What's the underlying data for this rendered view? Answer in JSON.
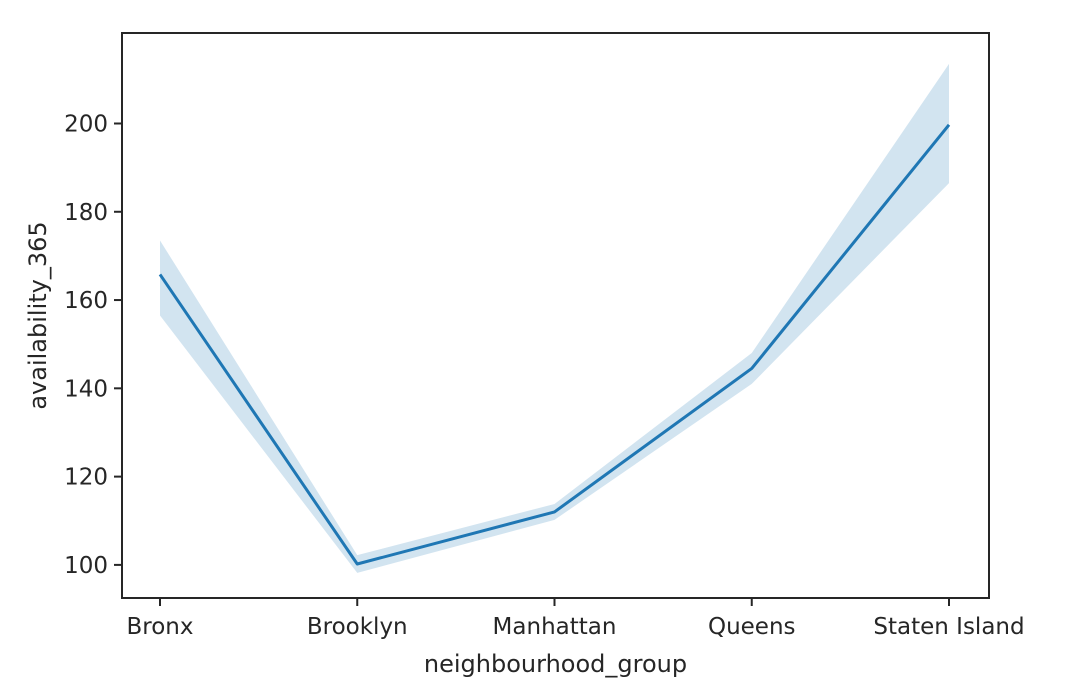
{
  "chart_data": {
    "type": "line",
    "title": "",
    "xlabel": "neighbourhood_group",
    "ylabel": "availability_365",
    "categories": [
      "Bronx",
      "Brooklyn",
      "Manhattan",
      "Queens",
      "Staten Island"
    ],
    "series": [
      {
        "values": [
          165.8,
          100.2,
          112.0,
          144.5,
          199.7
        ],
        "ci_lower": [
          156.5,
          98.2,
          110.2,
          141.0,
          186.5
        ],
        "ci_upper": [
          173.5,
          102.2,
          113.8,
          148.0,
          213.5
        ]
      }
    ],
    "y_ticks": [
      100,
      120,
      140,
      160,
      180,
      200
    ],
    "ylim": [
      92.5,
      220.5
    ],
    "grid": false,
    "legend": "none",
    "colors": {
      "line": "#1f77b4",
      "band": "#1f77b4",
      "axes": "#262626"
    }
  }
}
